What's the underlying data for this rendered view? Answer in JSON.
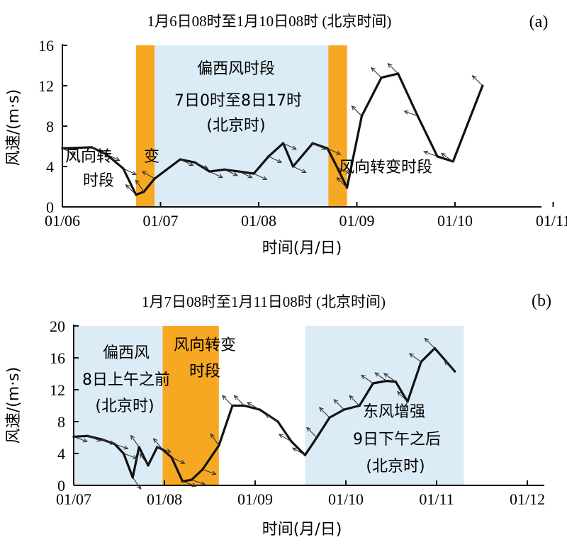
{
  "colors": {
    "westerly_band": "#dcecf6",
    "transition_band": "#f7a823",
    "easterly_band": "#dcecf6",
    "line": "#111111"
  },
  "chart_data": [
    {
      "id": "a",
      "type": "line",
      "panel_label": "(a)",
      "title": "1月6日08时至1月10日08时 (北京时间)",
      "xlabel": "时间(月/日)",
      "ylabel": "风速/(m·s)",
      "x_start": "01/06",
      "x_ticks": [
        "01/06",
        "01/07",
        "01/08",
        "01/09",
        "01/10",
        "01/11"
      ],
      "ylim": [
        0,
        16
      ],
      "y_ticks": [
        0,
        4,
        8,
        12,
        16
      ],
      "bands": [
        {
          "kind": "transition",
          "x0": 0.75,
          "x1": 0.94
        },
        {
          "kind": "westerly",
          "x0": 0.94,
          "x1": 2.71
        },
        {
          "kind": "transition",
          "x0": 2.71,
          "x1": 2.9
        }
      ],
      "series": [
        {
          "x": [
            0,
            0.3,
            0.45,
            0.62,
            0.75,
            0.83,
            0.94,
            1.2,
            1.35,
            1.5,
            1.65,
            1.8,
            1.95,
            2.1,
            2.25,
            2.35,
            2.55,
            2.7,
            2.8,
            2.9,
            3.05,
            3.25,
            3.42,
            3.62,
            3.82,
            3.98,
            4.28
          ],
          "values": [
            5.8,
            5.9,
            5.2,
            3.8,
            1.2,
            1.5,
            2.8,
            4.7,
            4.4,
            3.5,
            3.7,
            3.5,
            3.3,
            5.0,
            6.3,
            4.0,
            6.3,
            5.8,
            3.9,
            1.9,
            9.0,
            12.8,
            13.2,
            9.0,
            5.0,
            4.5,
            12.0
          ]
        }
      ],
      "arrows_shown_at_x": [
        0,
        0.3,
        0.45,
        0.62,
        0.75,
        0.83,
        0.94,
        1.2,
        1.35,
        1.5,
        1.65,
        1.8,
        1.95,
        2.1,
        2.25,
        2.35,
        2.55,
        2.7,
        2.8,
        2.9,
        3.05,
        3.25,
        3.42,
        3.62,
        3.82,
        3.98,
        4.28
      ],
      "annotations": [
        {
          "id": "transition_1_line1",
          "text": "风向转"
        },
        {
          "id": "transition_1_line2",
          "text": "变"
        },
        {
          "id": "transition_1_line3",
          "text": "时段"
        },
        {
          "id": "westerly_line1",
          "text": "偏西风时段"
        },
        {
          "id": "westerly_line2",
          "text": "7日0时至8日17时"
        },
        {
          "id": "westerly_line3",
          "text": "(北京时)"
        },
        {
          "id": "transition_2",
          "text": "风向转变时段"
        }
      ]
    },
    {
      "id": "b",
      "type": "line",
      "panel_label": "(b)",
      "title": "1月7日08时至1月11日08时 (北京时间)",
      "xlabel": "时间(月/日)",
      "ylabel": "风速/(m·s)",
      "x_start": "01/07",
      "x_ticks": [
        "01/07",
        "01/08",
        "01/09",
        "01/10",
        "01/11",
        "01/12"
      ],
      "ylim": [
        0,
        20
      ],
      "y_ticks": [
        0,
        4,
        8,
        12,
        16,
        20
      ],
      "bands": [
        {
          "kind": "westerly",
          "x0": -0.04,
          "x1": 0.98
        },
        {
          "kind": "transition",
          "x0": 0.98,
          "x1": 1.6
        },
        {
          "kind": "easterly",
          "x0": 2.55,
          "x1": 4.3
        }
      ],
      "series": [
        {
          "x": [
            0,
            0.15,
            0.3,
            0.45,
            0.55,
            0.65,
            0.72,
            0.82,
            0.92,
            0.98,
            1.08,
            1.2,
            1.3,
            1.42,
            1.6,
            1.75,
            1.88,
            2.05,
            2.25,
            2.4,
            2.55,
            2.68,
            2.82,
            2.98,
            3.15,
            3.3,
            3.45,
            3.55,
            3.68,
            3.83,
            3.98,
            4.2
          ],
          "values": [
            6.1,
            6.2,
            5.8,
            5.2,
            4.0,
            1.0,
            4.8,
            2.5,
            4.8,
            4.5,
            3.5,
            0.5,
            0.7,
            2.0,
            5.0,
            10.0,
            10.0,
            9.5,
            8.0,
            5.5,
            3.8,
            6.0,
            8.5,
            9.5,
            10.0,
            12.8,
            13.1,
            13.0,
            10.5,
            15.5,
            17.2,
            14.3
          ]
        }
      ],
      "arrows_shown_at_x": [
        0,
        0.15,
        0.3,
        0.45,
        0.55,
        0.65,
        0.72,
        0.82,
        0.92,
        0.98,
        1.08,
        1.2,
        1.3,
        1.42,
        1.6,
        1.75,
        1.88,
        2.05,
        2.25,
        2.4,
        2.55,
        2.68,
        2.82,
        2.98,
        3.15,
        3.3,
        3.45,
        3.55,
        3.68,
        3.83,
        3.98,
        4.2
      ],
      "annotations": [
        {
          "id": "westerly_line1",
          "text": "偏西风"
        },
        {
          "id": "westerly_line2",
          "text": "8日上午之前"
        },
        {
          "id": "westerly_line3",
          "text": "(北京时)"
        },
        {
          "id": "transition_line1",
          "text": "风向转变"
        },
        {
          "id": "transition_line2",
          "text": "时段"
        },
        {
          "id": "easterly_line1",
          "text": "东风增强"
        },
        {
          "id": "easterly_line2",
          "text": "9日下午之后"
        },
        {
          "id": "easterly_line3",
          "text": "(北京时)"
        }
      ]
    }
  ]
}
